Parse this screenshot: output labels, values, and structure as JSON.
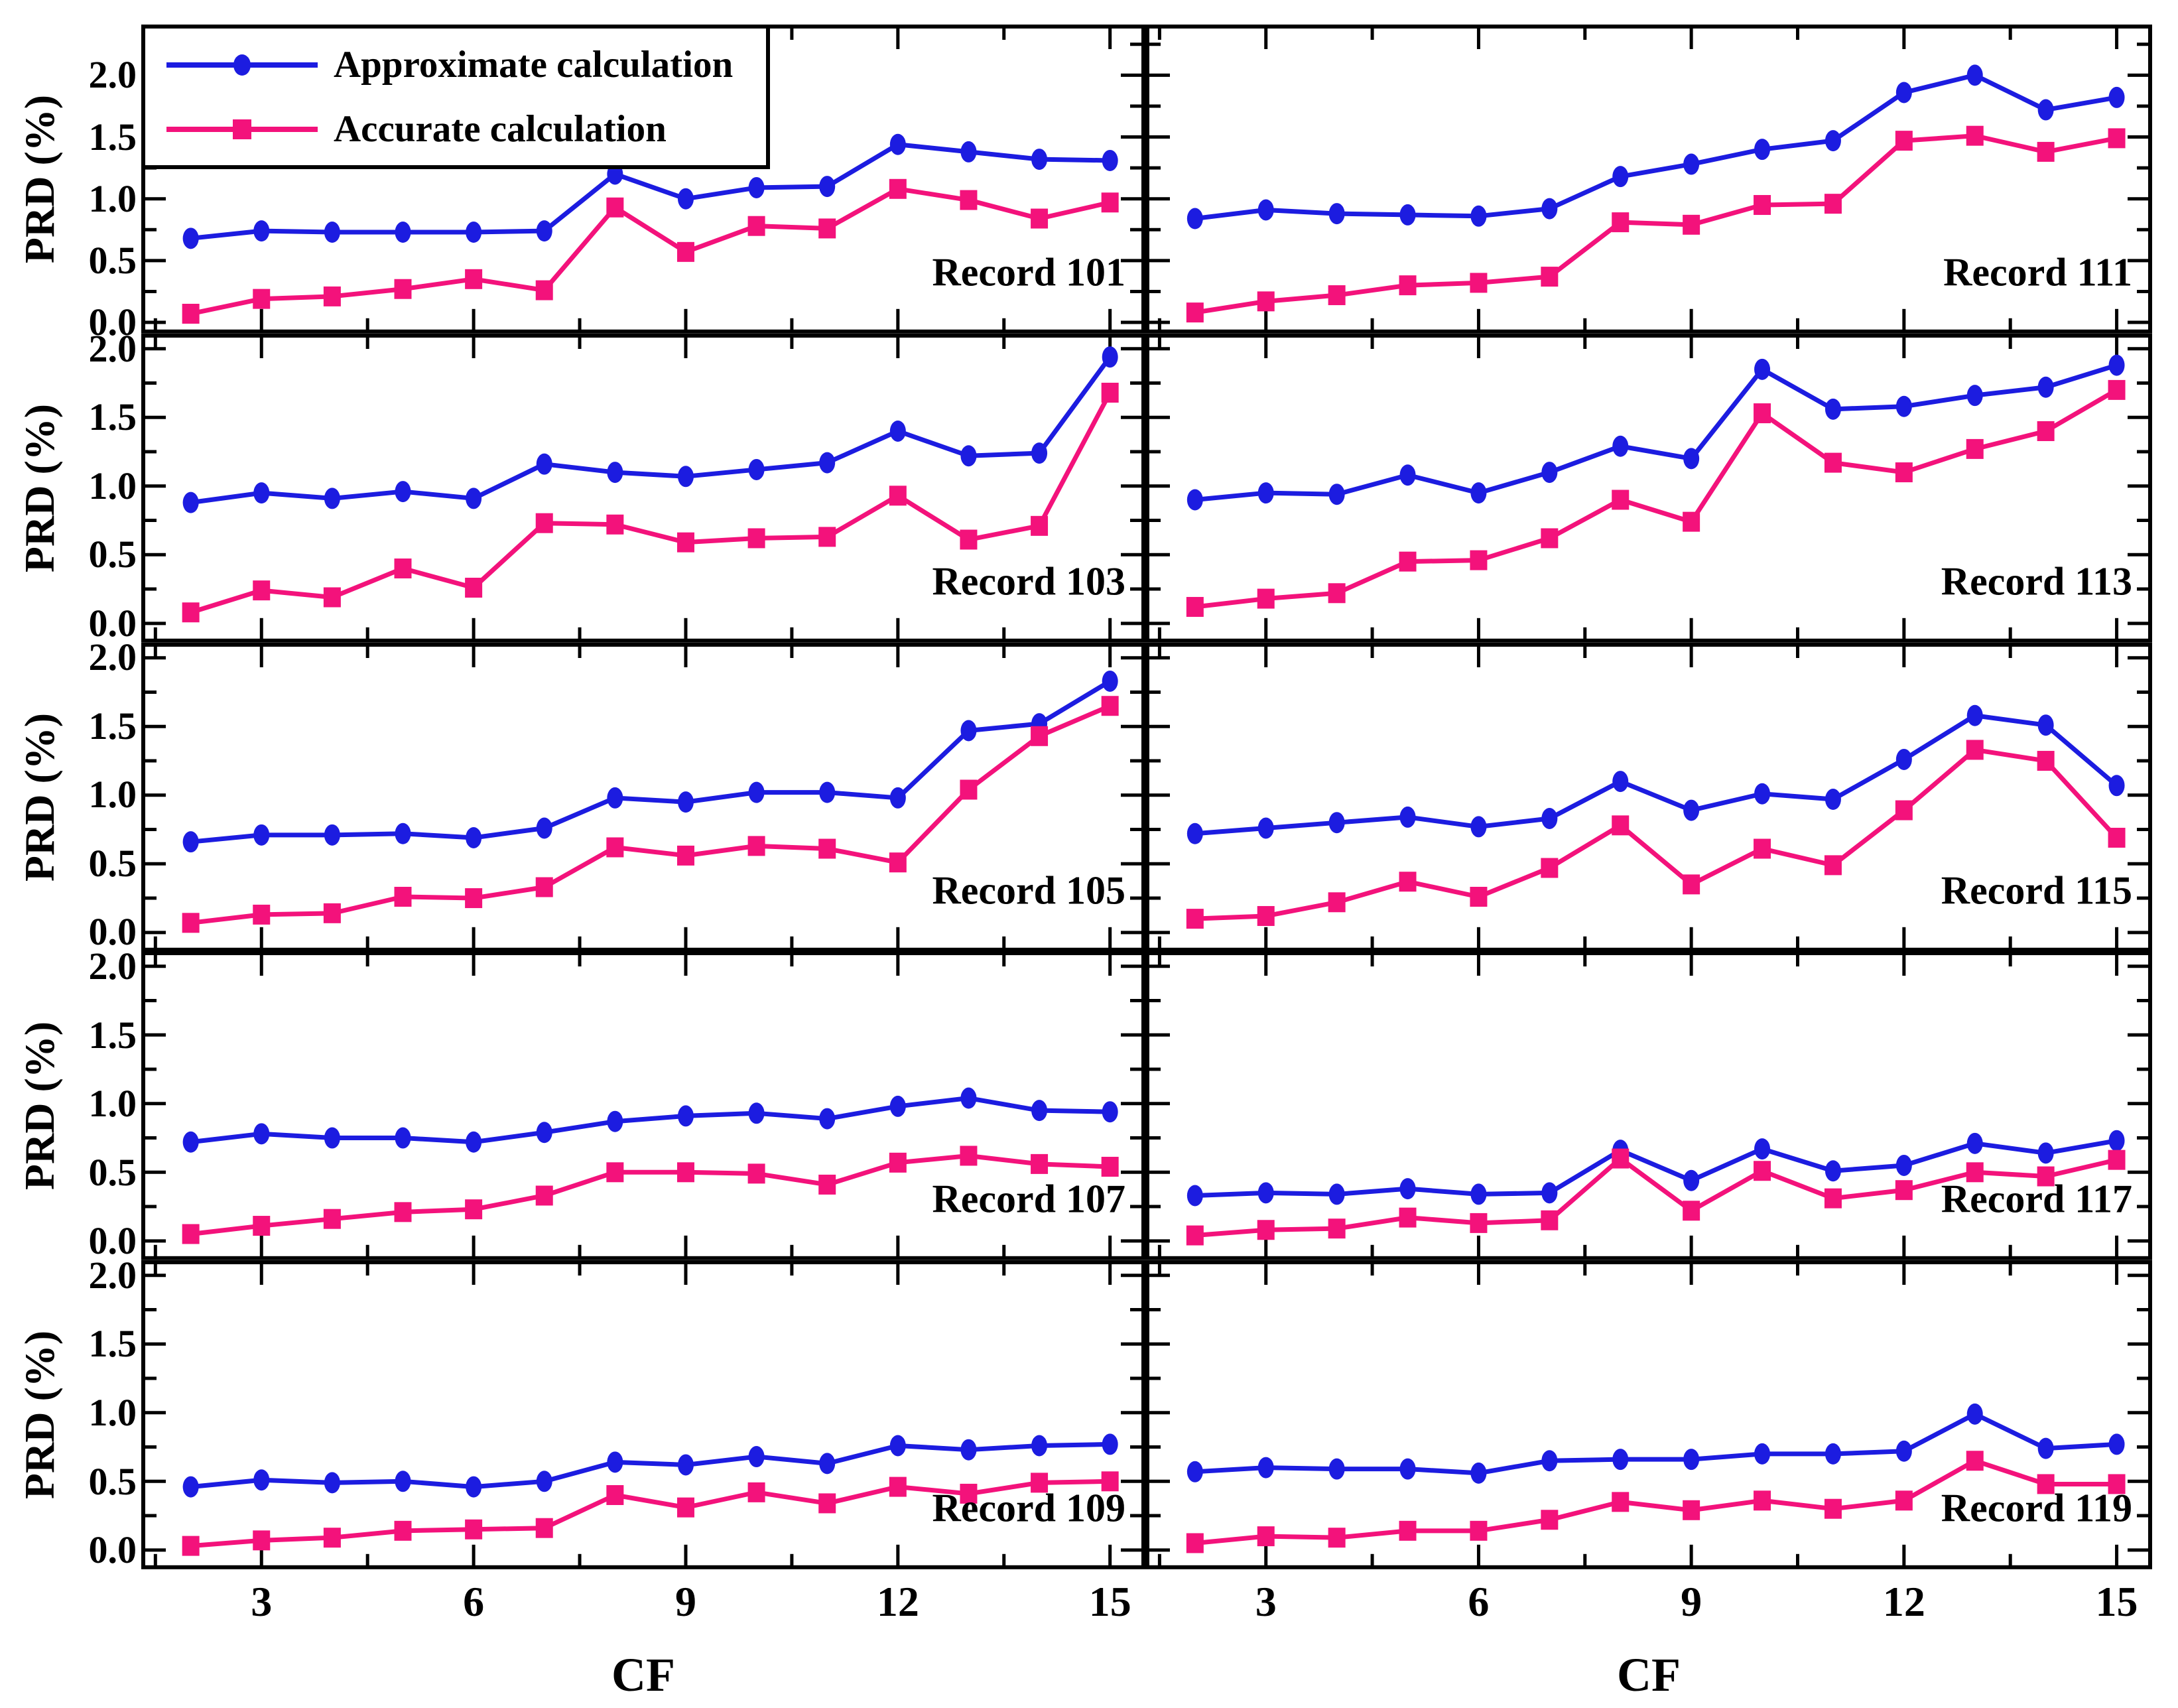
{
  "chart_data": {
    "type": "line",
    "layout": "5 rows x 2 columns of panels, shared axes",
    "xlabel": "CF",
    "ylabel": "PRD (%)",
    "x_tick_labels": [
      "3",
      "6",
      "9",
      "12",
      "15"
    ],
    "x_major_ticks": [
      3,
      6,
      9,
      12,
      15
    ],
    "x_minor_ticks": [
      1.5,
      4.5,
      7.5,
      10.5,
      13.5
    ],
    "y_tick_labels": [
      "2.0",
      "1.5",
      "1.0",
      "0.5",
      "0.0"
    ],
    "y_major_ticks": [
      2.0,
      1.5,
      1.0,
      0.5,
      0.0
    ],
    "y_minor_ticks": [
      0.25,
      0.75,
      1.25,
      1.75,
      2.25
    ],
    "xlim": [
      1.3,
      15.5
    ],
    "ylim": [
      0.0,
      2.0
    ],
    "grid": "off",
    "legend_position": "top-left panel, boxed",
    "legend": [
      {
        "label": "Approximate calculation",
        "color": "#1c1ce0",
        "marker": "circle"
      },
      {
        "label": "Accurate calculation",
        "color": "#f3127b",
        "marker": "square"
      }
    ],
    "x": [
      2,
      3,
      4,
      5,
      6,
      7,
      8,
      9,
      10,
      11,
      12,
      13,
      14,
      15
    ],
    "panels": [
      {
        "record": "Record 101",
        "series": [
          {
            "name": "Approximate calculation",
            "values": [
              0.68,
              0.74,
              0.73,
              0.73,
              0.73,
              0.74,
              1.2,
              1.0,
              1.09,
              1.1,
              1.44,
              1.38,
              1.32,
              1.31
            ]
          },
          {
            "name": "Accurate calculation",
            "values": [
              0.07,
              0.19,
              0.21,
              0.27,
              0.35,
              0.26,
              0.93,
              0.57,
              0.78,
              0.76,
              1.08,
              0.99,
              0.84,
              0.97
            ]
          }
        ]
      },
      {
        "record": "Record 111",
        "series": [
          {
            "name": "Approximate calculation",
            "values": [
              0.84,
              0.91,
              0.88,
              0.87,
              0.86,
              0.92,
              1.18,
              1.28,
              1.4,
              1.47,
              1.86,
              2.0,
              1.72,
              1.82
            ]
          },
          {
            "name": "Accurate calculation",
            "values": [
              0.08,
              0.17,
              0.22,
              0.3,
              0.32,
              0.37,
              0.81,
              0.79,
              0.95,
              0.96,
              1.47,
              1.51,
              1.38,
              1.49
            ]
          }
        ]
      },
      {
        "record": "Record 103",
        "series": [
          {
            "name": "Approximate calculation",
            "values": [
              0.88,
              0.95,
              0.91,
              0.96,
              0.91,
              1.16,
              1.1,
              1.07,
              1.12,
              1.17,
              1.4,
              1.22,
              1.24,
              1.94
            ]
          },
          {
            "name": "Accurate calculation",
            "values": [
              0.08,
              0.24,
              0.19,
              0.4,
              0.26,
              0.73,
              0.72,
              0.59,
              0.62,
              0.63,
              0.93,
              0.61,
              0.71,
              1.68
            ]
          }
        ]
      },
      {
        "record": "Record 113",
        "series": [
          {
            "name": "Approximate calculation",
            "values": [
              0.9,
              0.95,
              0.94,
              1.08,
              0.95,
              1.1,
              1.29,
              1.2,
              1.85,
              1.56,
              1.58,
              1.66,
              1.72,
              1.88
            ]
          },
          {
            "name": "Accurate calculation",
            "values": [
              0.12,
              0.18,
              0.22,
              0.45,
              0.46,
              0.62,
              0.9,
              0.74,
              1.53,
              1.17,
              1.1,
              1.27,
              1.4,
              1.7
            ]
          }
        ]
      },
      {
        "record": "Record 105",
        "series": [
          {
            "name": "Approximate calculation",
            "values": [
              0.66,
              0.71,
              0.71,
              0.72,
              0.69,
              0.76,
              0.98,
              0.95,
              1.02,
              1.02,
              0.98,
              1.47,
              1.52,
              1.83
            ]
          },
          {
            "name": "Accurate calculation",
            "values": [
              0.07,
              0.13,
              0.14,
              0.26,
              0.25,
              0.33,
              0.62,
              0.56,
              0.63,
              0.61,
              0.51,
              1.04,
              1.43,
              1.65
            ]
          }
        ]
      },
      {
        "record": "Record 115",
        "series": [
          {
            "name": "Approximate calculation",
            "values": [
              0.72,
              0.76,
              0.8,
              0.84,
              0.77,
              0.83,
              1.1,
              0.89,
              1.01,
              0.97,
              1.26,
              1.58,
              1.51,
              1.07
            ]
          },
          {
            "name": "Accurate calculation",
            "values": [
              0.1,
              0.12,
              0.22,
              0.37,
              0.26,
              0.47,
              0.78,
              0.35,
              0.61,
              0.49,
              0.89,
              1.33,
              1.25,
              0.69
            ]
          }
        ]
      },
      {
        "record": "Record 107",
        "series": [
          {
            "name": "Approximate calculation",
            "values": [
              0.72,
              0.78,
              0.75,
              0.75,
              0.72,
              0.79,
              0.87,
              0.91,
              0.93,
              0.89,
              0.98,
              1.04,
              0.95,
              0.94
            ]
          },
          {
            "name": "Accurate calculation",
            "values": [
              0.05,
              0.11,
              0.16,
              0.21,
              0.23,
              0.33,
              0.5,
              0.5,
              0.49,
              0.41,
              0.57,
              0.62,
              0.56,
              0.54
            ]
          }
        ]
      },
      {
        "record": "Record 117",
        "series": [
          {
            "name": "Approximate calculation",
            "values": [
              0.33,
              0.35,
              0.34,
              0.38,
              0.34,
              0.35,
              0.66,
              0.44,
              0.67,
              0.51,
              0.55,
              0.71,
              0.64,
              0.73
            ]
          },
          {
            "name": "Accurate calculation",
            "values": [
              0.04,
              0.08,
              0.09,
              0.17,
              0.13,
              0.15,
              0.6,
              0.22,
              0.51,
              0.31,
              0.37,
              0.5,
              0.47,
              0.59
            ]
          }
        ]
      },
      {
        "record": "Record 109",
        "series": [
          {
            "name": "Approximate calculation",
            "values": [
              0.46,
              0.51,
              0.49,
              0.5,
              0.46,
              0.5,
              0.64,
              0.62,
              0.68,
              0.63,
              0.76,
              0.73,
              0.76,
              0.77
            ]
          },
          {
            "name": "Accurate calculation",
            "values": [
              0.03,
              0.07,
              0.09,
              0.14,
              0.15,
              0.16,
              0.4,
              0.31,
              0.42,
              0.34,
              0.46,
              0.41,
              0.49,
              0.5
            ]
          }
        ]
      },
      {
        "record": "Record 119",
        "series": [
          {
            "name": "Approximate calculation",
            "values": [
              0.57,
              0.6,
              0.59,
              0.59,
              0.56,
              0.65,
              0.66,
              0.66,
              0.7,
              0.7,
              0.72,
              0.99,
              0.74,
              0.77
            ]
          },
          {
            "name": "Accurate calculation",
            "values": [
              0.05,
              0.1,
              0.09,
              0.14,
              0.14,
              0.22,
              0.35,
              0.29,
              0.36,
              0.3,
              0.36,
              0.65,
              0.48,
              0.48
            ]
          }
        ]
      }
    ]
  }
}
